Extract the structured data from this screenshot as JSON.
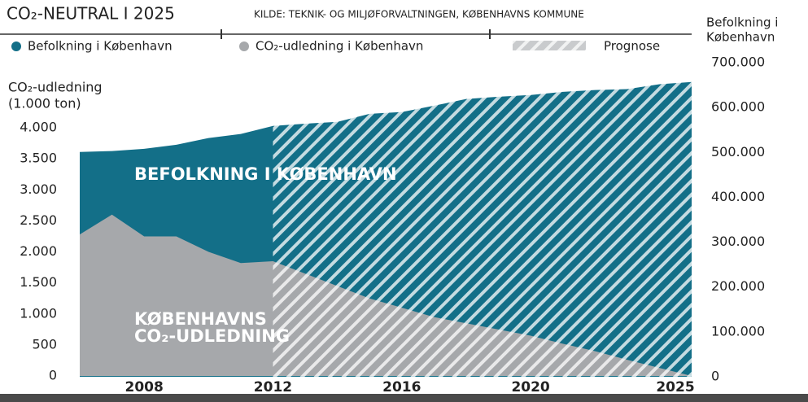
{
  "chart_data": {
    "type": "area",
    "title": "CO₂-NEUTRAL I 2025",
    "source": "KILDE: TEKNIK- OG MILJØFORVALTNINGEN, KØBENHAVNS KOMMUNE",
    "y_label": [
      "CO₂-udledning",
      "(1.000 ton)"
    ],
    "y2_label": [
      "Befolkning i",
      "København"
    ],
    "forecast_label": "Prognose",
    "forecast_start": 2012,
    "annotations": [
      "BEFOLKNING I KØBENHAVN",
      "KØBENHAVNS",
      "CO₂-UDLEDNING"
    ],
    "x": [
      2006,
      2007,
      2008,
      2009,
      2010,
      2011,
      2012,
      2013,
      2014,
      2015,
      2016,
      2017,
      2018,
      2019,
      2020,
      2021,
      2022,
      2023,
      2024,
      2025
    ],
    "xlim": [
      2006,
      2025
    ],
    "xticks": [
      2008,
      2012,
      2016,
      2020,
      2025
    ],
    "ylim": [
      0,
      4000
    ],
    "yticks": [
      0,
      500,
      {
        "value": 1000,
        "label": "1.000"
      },
      {
        "value": 1500,
        "label": "1.500"
      },
      {
        "value": 2000,
        "label": "2.000"
      },
      {
        "value": 2500,
        "label": "2.500"
      },
      {
        "value": 3000,
        "label": "3.000"
      },
      {
        "value": 3500,
        "label": "3.500"
      },
      {
        "value": 4000,
        "label": "4.000"
      }
    ],
    "y2lim": [
      0,
      700000
    ],
    "y2ticks": [
      0,
      {
        "value": 100000,
        "label": "100.000"
      },
      {
        "value": 200000,
        "label": "200.000"
      },
      {
        "value": 300000,
        "label": "300.000"
      },
      {
        "value": 400000,
        "label": "400.000"
      },
      {
        "value": 500000,
        "label": "500.000"
      },
      {
        "value": 600000,
        "label": "600.000"
      },
      {
        "value": 700000,
        "label": "700.000"
      }
    ],
    "series": [
      {
        "name": "Befolkning i København",
        "color": "#136f88",
        "axis": "y2",
        "values": [
          501000,
          503000,
          508000,
          517000,
          532000,
          541000,
          559000,
          564000,
          568000,
          586000,
          590000,
          604000,
          619000,
          624000,
          628000,
          635000,
          639000,
          641000,
          652000,
          657000
        ]
      },
      {
        "name": "CO₂-udledning i København",
        "color": "#a6a8ab",
        "values": [
          2280,
          2600,
          2250,
          2250,
          2000,
          1820,
          1850,
          1650,
          1450,
          1250,
          1100,
          950,
          850,
          750,
          650,
          520,
          400,
          260,
          130,
          0
        ]
      }
    ]
  }
}
